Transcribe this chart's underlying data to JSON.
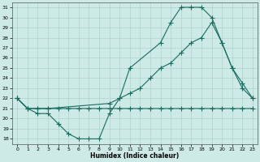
{
  "xlabel": "Humidex (Indice chaleur)",
  "bg_color": "#cdeae6",
  "line_color": "#1a6b60",
  "grid_color": "#aed4cf",
  "xlim": [
    -0.5,
    23.5
  ],
  "ylim": [
    17.5,
    31.5
  ],
  "xticks": [
    0,
    1,
    2,
    3,
    4,
    5,
    6,
    7,
    8,
    9,
    10,
    11,
    12,
    13,
    14,
    15,
    16,
    17,
    18,
    19,
    20,
    21,
    22,
    23
  ],
  "yticks": [
    18,
    19,
    20,
    21,
    22,
    23,
    24,
    25,
    26,
    27,
    28,
    29,
    30,
    31
  ],
  "line1_x": [
    0,
    1,
    2,
    3,
    4,
    5,
    6,
    7,
    8,
    9,
    10,
    11,
    14,
    15,
    16,
    17,
    18,
    19,
    20,
    21,
    22,
    23
  ],
  "line1_y": [
    22,
    21,
    20.5,
    20.5,
    19.5,
    18.5,
    18,
    18,
    18,
    20.5,
    22,
    25,
    27.5,
    29.5,
    31,
    31,
    31,
    30,
    27.5,
    25,
    23,
    22
  ],
  "line2_x": [
    0,
    1,
    2,
    3,
    4,
    5,
    6,
    7,
    8,
    9,
    10,
    11,
    12,
    13,
    14,
    15,
    16,
    17,
    18,
    19,
    20,
    21,
    22,
    23
  ],
  "line2_y": [
    22,
    21,
    21,
    21,
    21,
    21,
    21,
    21,
    21,
    21,
    21,
    21,
    21,
    21,
    21,
    21,
    21,
    21,
    21,
    21,
    21,
    21,
    21,
    21
  ],
  "line3_x": [
    0,
    1,
    2,
    3,
    9,
    10,
    11,
    12,
    13,
    14,
    15,
    16,
    17,
    18,
    19,
    20,
    21,
    22,
    23
  ],
  "line3_y": [
    22,
    21,
    21,
    21,
    21.5,
    22,
    22.5,
    23,
    24,
    25,
    25.5,
    26.5,
    27.5,
    28,
    29.5,
    27.5,
    25,
    23.5,
    22
  ]
}
